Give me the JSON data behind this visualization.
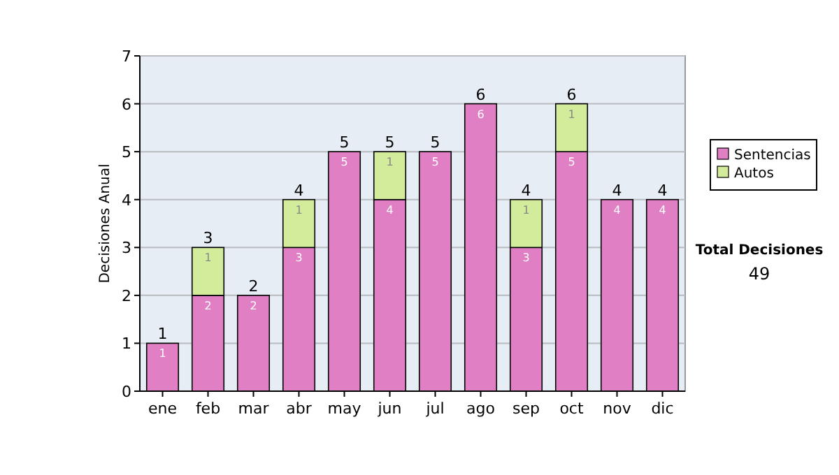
{
  "chart_data": {
    "type": "bar",
    "stacked": true,
    "ylabel": "Decisiones Anual",
    "categories": [
      "ene",
      "feb",
      "mar",
      "abr",
      "may",
      "jun",
      "jul",
      "ago",
      "sep",
      "oct",
      "nov",
      "dic"
    ],
    "series": [
      {
        "name": "Sentencias",
        "color": "#e07fc4",
        "values": [
          1,
          2,
          2,
          3,
          5,
          4,
          5,
          6,
          3,
          5,
          4,
          4
        ]
      },
      {
        "name": "Autos",
        "color": "#d2ec9c",
        "values": [
          null,
          1,
          null,
          1,
          null,
          1,
          null,
          null,
          1,
          1,
          null,
          null
        ]
      }
    ],
    "ylim": [
      0,
      7
    ],
    "yticks": [
      0,
      1,
      2,
      3,
      4,
      5,
      6,
      7
    ],
    "grid": "y",
    "legend": "right",
    "data_labels": true,
    "totals": [
      "1",
      "3",
      "2",
      "4",
      "5",
      "5",
      "5",
      "6",
      "4",
      "6",
      "4",
      "4"
    ],
    "annotations": [
      "Total Decisiones",
      "49"
    ]
  }
}
